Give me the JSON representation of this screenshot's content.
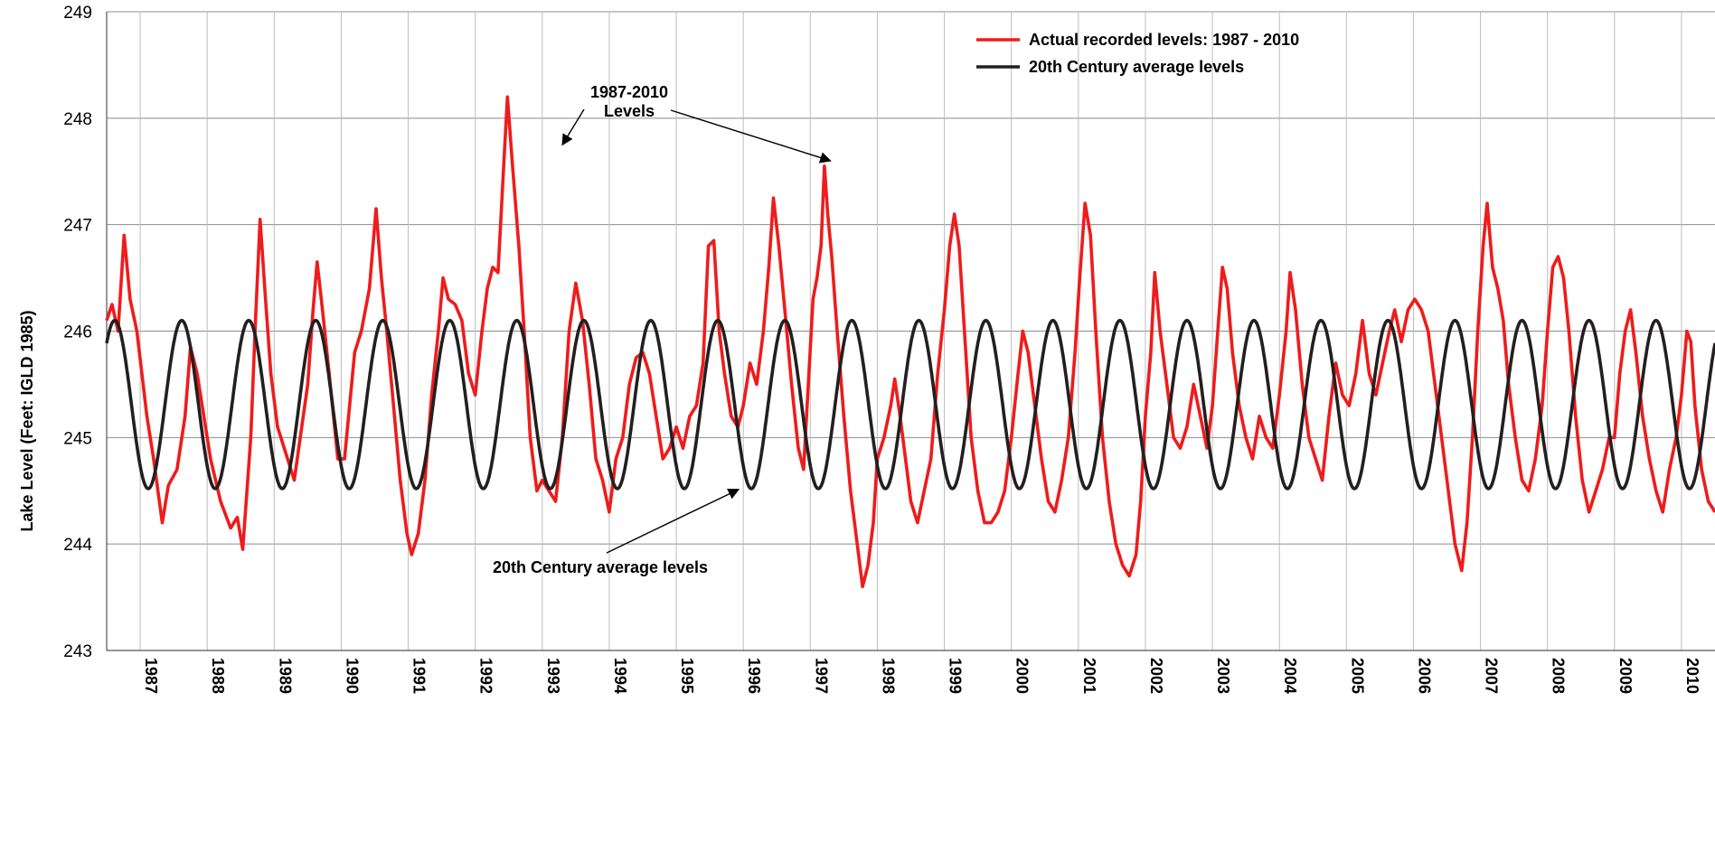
{
  "chart_data": {
    "type": "line",
    "title": "",
    "xlabel": "",
    "ylabel": "Lake Level (Feet: IGLD 1985)",
    "ylim": [
      243,
      249
    ],
    "xlim": [
      1986.5,
      2010.5
    ],
    "grid": true,
    "y_ticks": [
      "243",
      "244",
      "245",
      "246",
      "247",
      "248",
      "249"
    ],
    "x_categories": [
      "1987",
      "1988",
      "1989",
      "1990",
      "1991",
      "1992",
      "1993",
      "1994",
      "1995",
      "1996",
      "1997",
      "1998",
      "1999",
      "2000",
      "2001",
      "2002",
      "2003",
      "2004",
      "2005",
      "2006",
      "2007",
      "2008",
      "2009",
      "2010"
    ],
    "legend_position": "top-right",
    "series": [
      {
        "name": "Actual recorded levels: 1987 - 2010",
        "color": "#ee1c1c",
        "points": [
          [
            1986.5,
            246.1
          ],
          [
            1986.58,
            246.25
          ],
          [
            1986.67,
            246.0
          ],
          [
            1986.76,
            246.9
          ],
          [
            1986.85,
            246.3
          ],
          [
            1986.95,
            246.0
          ],
          [
            1987.1,
            245.2
          ],
          [
            1987.2,
            244.8
          ],
          [
            1987.33,
            244.2
          ],
          [
            1987.42,
            244.55
          ],
          [
            1987.55,
            244.7
          ],
          [
            1987.67,
            245.2
          ],
          [
            1987.75,
            245.85
          ],
          [
            1987.85,
            245.6
          ],
          [
            1987.95,
            245.2
          ],
          [
            1988.05,
            244.8
          ],
          [
            1988.2,
            244.4
          ],
          [
            1988.35,
            244.15
          ],
          [
            1988.45,
            244.25
          ],
          [
            1988.53,
            243.95
          ],
          [
            1988.65,
            245.0
          ],
          [
            1988.72,
            246.1
          ],
          [
            1988.79,
            247.05
          ],
          [
            1988.87,
            246.3
          ],
          [
            1988.95,
            245.6
          ],
          [
            1989.05,
            245.1
          ],
          [
            1989.15,
            244.9
          ],
          [
            1989.3,
            244.6
          ],
          [
            1989.5,
            245.5
          ],
          [
            1989.58,
            246.2
          ],
          [
            1989.64,
            246.65
          ],
          [
            1989.72,
            246.2
          ],
          [
            1989.82,
            245.6
          ],
          [
            1989.95,
            244.8
          ],
          [
            1990.05,
            244.8
          ],
          [
            1990.2,
            245.8
          ],
          [
            1990.3,
            246.0
          ],
          [
            1990.42,
            246.4
          ],
          [
            1990.52,
            247.15
          ],
          [
            1990.6,
            246.5
          ],
          [
            1990.68,
            246.0
          ],
          [
            1990.78,
            245.3
          ],
          [
            1990.88,
            244.6
          ],
          [
            1990.98,
            244.1
          ],
          [
            1991.05,
            243.9
          ],
          [
            1991.15,
            244.1
          ],
          [
            1991.25,
            244.6
          ],
          [
            1991.35,
            245.4
          ],
          [
            1991.45,
            246.0
          ],
          [
            1991.52,
            246.5
          ],
          [
            1991.6,
            246.3
          ],
          [
            1991.7,
            246.25
          ],
          [
            1991.8,
            246.1
          ],
          [
            1991.9,
            245.6
          ],
          [
            1992.0,
            245.4
          ],
          [
            1992.1,
            246.0
          ],
          [
            1992.18,
            246.4
          ],
          [
            1992.26,
            246.6
          ],
          [
            1992.34,
            246.55
          ],
          [
            1992.42,
            247.5
          ],
          [
            1992.48,
            248.2
          ],
          [
            1992.55,
            247.6
          ],
          [
            1992.65,
            246.8
          ],
          [
            1992.73,
            246.0
          ],
          [
            1992.82,
            245.0
          ],
          [
            1992.92,
            244.5
          ],
          [
            1993.0,
            244.6
          ],
          [
            1993.1,
            244.5
          ],
          [
            1993.2,
            244.4
          ],
          [
            1993.3,
            245.0
          ],
          [
            1993.4,
            246.0
          ],
          [
            1993.5,
            246.45
          ],
          [
            1993.6,
            246.1
          ],
          [
            1993.7,
            245.5
          ],
          [
            1993.8,
            244.8
          ],
          [
            1993.9,
            244.6
          ],
          [
            1994.0,
            244.3
          ],
          [
            1994.1,
            244.8
          ],
          [
            1994.2,
            245.0
          ],
          [
            1994.3,
            245.5
          ],
          [
            1994.4,
            245.75
          ],
          [
            1994.5,
            245.8
          ],
          [
            1994.6,
            245.6
          ],
          [
            1994.7,
            245.2
          ],
          [
            1994.8,
            244.8
          ],
          [
            1994.9,
            244.9
          ],
          [
            1995.0,
            245.1
          ],
          [
            1995.1,
            244.9
          ],
          [
            1995.2,
            245.2
          ],
          [
            1995.3,
            245.3
          ],
          [
            1995.4,
            245.7
          ],
          [
            1995.48,
            246.8
          ],
          [
            1995.56,
            246.85
          ],
          [
            1995.64,
            246.0
          ],
          [
            1995.72,
            245.6
          ],
          [
            1995.82,
            245.2
          ],
          [
            1995.92,
            245.1
          ],
          [
            1996.0,
            245.3
          ],
          [
            1996.1,
            245.7
          ],
          [
            1996.2,
            245.5
          ],
          [
            1996.3,
            246.0
          ],
          [
            1996.38,
            246.6
          ],
          [
            1996.45,
            247.25
          ],
          [
            1996.53,
            246.8
          ],
          [
            1996.62,
            246.2
          ],
          [
            1996.72,
            245.5
          ],
          [
            1996.82,
            244.9
          ],
          [
            1996.9,
            244.7
          ],
          [
            1996.97,
            245.5
          ],
          [
            1997.04,
            246.3
          ],
          [
            1997.1,
            246.5
          ],
          [
            1997.16,
            246.8
          ],
          [
            1997.21,
            247.55
          ],
          [
            1997.26,
            247.1
          ],
          [
            1997.32,
            246.7
          ],
          [
            1997.4,
            246.0
          ],
          [
            1997.5,
            245.2
          ],
          [
            1997.6,
            244.5
          ],
          [
            1997.7,
            244.0
          ],
          [
            1997.78,
            243.6
          ],
          [
            1997.86,
            243.8
          ],
          [
            1997.94,
            244.2
          ],
          [
            1998.0,
            244.8
          ],
          [
            1998.1,
            245.0
          ],
          [
            1998.2,
            245.3
          ],
          [
            1998.26,
            245.55
          ],
          [
            1998.34,
            245.2
          ],
          [
            1998.42,
            244.8
          ],
          [
            1998.5,
            244.4
          ],
          [
            1998.6,
            244.2
          ],
          [
            1998.7,
            244.5
          ],
          [
            1998.8,
            244.8
          ],
          [
            1998.9,
            245.6
          ],
          [
            1999.0,
            246.2
          ],
          [
            1999.08,
            246.8
          ],
          [
            1999.15,
            247.1
          ],
          [
            1999.22,
            246.8
          ],
          [
            1999.3,
            246.0
          ],
          [
            1999.4,
            245.0
          ],
          [
            1999.5,
            244.5
          ],
          [
            1999.6,
            244.2
          ],
          [
            1999.7,
            244.2
          ],
          [
            1999.8,
            244.3
          ],
          [
            1999.9,
            244.5
          ],
          [
            2000.0,
            245.0
          ],
          [
            2000.1,
            245.6
          ],
          [
            2000.17,
            246.0
          ],
          [
            2000.25,
            245.8
          ],
          [
            2000.35,
            245.3
          ],
          [
            2000.45,
            244.8
          ],
          [
            2000.55,
            244.4
          ],
          [
            2000.65,
            244.3
          ],
          [
            2000.75,
            244.6
          ],
          [
            2000.85,
            245.0
          ],
          [
            2000.95,
            245.8
          ],
          [
            2001.02,
            246.5
          ],
          [
            2001.1,
            247.2
          ],
          [
            2001.18,
            246.9
          ],
          [
            2001.26,
            246.0
          ],
          [
            2001.36,
            245.0
          ],
          [
            2001.46,
            244.4
          ],
          [
            2001.56,
            244.0
          ],
          [
            2001.66,
            243.8
          ],
          [
            2001.76,
            243.7
          ],
          [
            2001.86,
            243.9
          ],
          [
            2001.93,
            244.4
          ],
          [
            2002.0,
            245.2
          ],
          [
            2002.08,
            245.8
          ],
          [
            2002.14,
            246.55
          ],
          [
            2002.22,
            246.0
          ],
          [
            2002.32,
            245.5
          ],
          [
            2002.42,
            245.0
          ],
          [
            2002.52,
            244.9
          ],
          [
            2002.62,
            245.1
          ],
          [
            2002.72,
            245.5
          ],
          [
            2002.82,
            245.2
          ],
          [
            2002.92,
            244.9
          ],
          [
            2003.0,
            245.3
          ],
          [
            2003.08,
            246.0
          ],
          [
            2003.15,
            246.6
          ],
          [
            2003.22,
            246.4
          ],
          [
            2003.3,
            245.8
          ],
          [
            2003.4,
            245.3
          ],
          [
            2003.5,
            245.0
          ],
          [
            2003.6,
            244.8
          ],
          [
            2003.7,
            245.2
          ],
          [
            2003.8,
            245.0
          ],
          [
            2003.9,
            244.9
          ],
          [
            2004.0,
            245.4
          ],
          [
            2004.1,
            246.0
          ],
          [
            2004.16,
            246.55
          ],
          [
            2004.24,
            246.2
          ],
          [
            2004.34,
            245.5
          ],
          [
            2004.44,
            245.0
          ],
          [
            2004.54,
            244.8
          ],
          [
            2004.64,
            244.6
          ],
          [
            2004.74,
            245.2
          ],
          [
            2004.84,
            245.7
          ],
          [
            2004.94,
            245.4
          ],
          [
            2005.04,
            245.3
          ],
          [
            2005.14,
            245.6
          ],
          [
            2005.24,
            246.1
          ],
          [
            2005.34,
            245.6
          ],
          [
            2005.44,
            245.4
          ],
          [
            2005.54,
            245.7
          ],
          [
            2005.64,
            246.0
          ],
          [
            2005.72,
            246.2
          ],
          [
            2005.82,
            245.9
          ],
          [
            2005.92,
            246.2
          ],
          [
            2006.02,
            246.3
          ],
          [
            2006.12,
            246.2
          ],
          [
            2006.22,
            246.0
          ],
          [
            2006.32,
            245.5
          ],
          [
            2006.42,
            245.0
          ],
          [
            2006.52,
            244.5
          ],
          [
            2006.62,
            244.0
          ],
          [
            2006.72,
            243.75
          ],
          [
            2006.8,
            244.2
          ],
          [
            2006.88,
            245.0
          ],
          [
            2006.96,
            246.0
          ],
          [
            2007.04,
            246.8
          ],
          [
            2007.1,
            247.2
          ],
          [
            2007.18,
            246.6
          ],
          [
            2007.26,
            246.4
          ],
          [
            2007.34,
            246.1
          ],
          [
            2007.42,
            245.5
          ],
          [
            2007.52,
            245.0
          ],
          [
            2007.62,
            244.6
          ],
          [
            2007.72,
            244.5
          ],
          [
            2007.82,
            244.8
          ],
          [
            2007.92,
            245.3
          ],
          [
            2008.0,
            246.0
          ],
          [
            2008.08,
            246.6
          ],
          [
            2008.16,
            246.7
          ],
          [
            2008.24,
            246.5
          ],
          [
            2008.32,
            246.0
          ],
          [
            2008.42,
            245.2
          ],
          [
            2008.52,
            244.6
          ],
          [
            2008.62,
            244.3
          ],
          [
            2008.72,
            244.5
          ],
          [
            2008.82,
            244.7
          ],
          [
            2008.92,
            245.0
          ],
          [
            2009.0,
            245.0
          ],
          [
            2009.08,
            245.6
          ],
          [
            2009.16,
            246.0
          ],
          [
            2009.24,
            246.2
          ],
          [
            2009.32,
            245.8
          ],
          [
            2009.42,
            245.2
          ],
          [
            2009.52,
            244.8
          ],
          [
            2009.62,
            244.5
          ],
          [
            2009.72,
            244.3
          ],
          [
            2009.82,
            244.7
          ],
          [
            2009.92,
            245.0
          ],
          [
            2010.0,
            245.4
          ],
          [
            2010.08,
            246.0
          ],
          [
            2010.14,
            245.9
          ],
          [
            2010.2,
            245.3
          ],
          [
            2010.3,
            244.7
          ],
          [
            2010.4,
            244.4
          ],
          [
            2010.5,
            244.3
          ]
        ]
      },
      {
        "name": "20th Century average levels",
        "color": "#231f20",
        "periodic": {
          "min": 244.52,
          "max": 246.1,
          "peak_offset": 0.62,
          "period": 1.0
        }
      }
    ],
    "annotations": [
      {
        "text_lines": [
          "1987-2010",
          "Levels"
        ],
        "arrows_to": [
          [
            1993.3,
            247.75
          ],
          [
            1997.3,
            247.6
          ]
        ]
      },
      {
        "text_lines": [
          "20th Century average levels"
        ],
        "arrows_to": [
          [
            1995.93,
            244.53
          ]
        ]
      }
    ]
  }
}
